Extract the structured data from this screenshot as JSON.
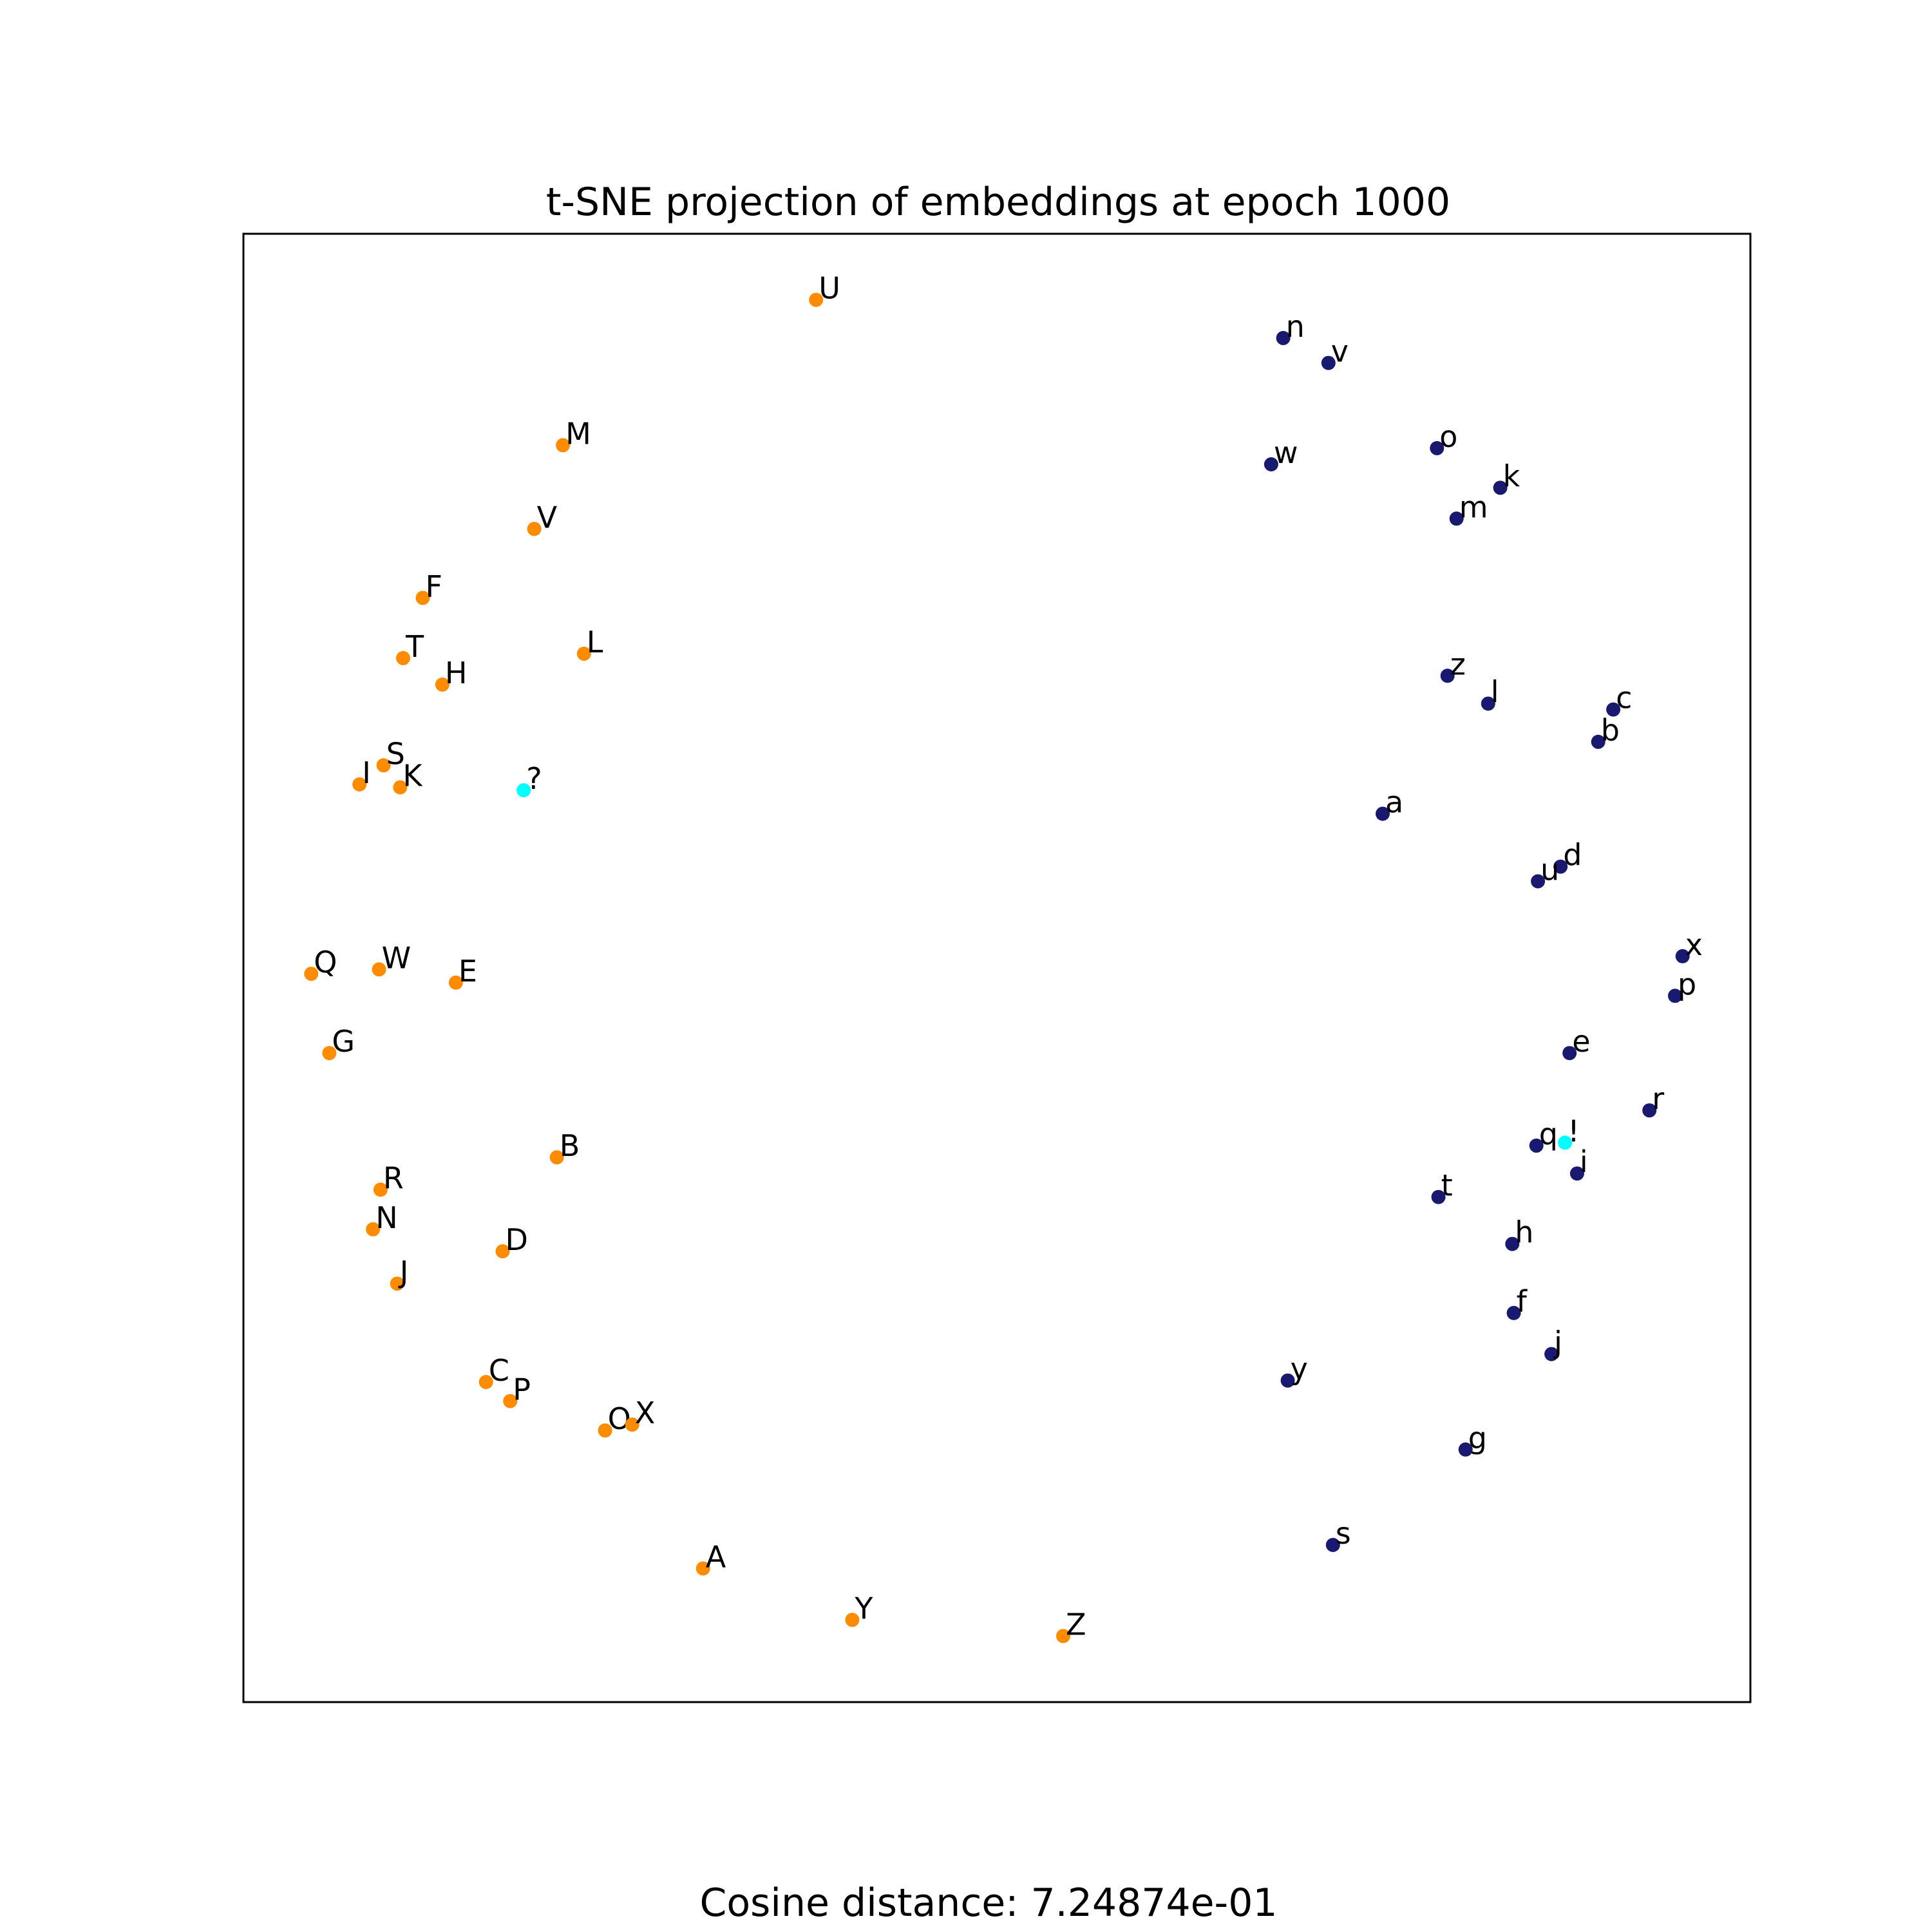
{
  "title": "t-SNE projection of embeddings at epoch 1000",
  "footer": "Cosine distance: 7.24874e-01",
  "colors": {
    "uppercase": "#ff8c00",
    "lowercase": "#191970",
    "punctuation": "#00ffff"
  },
  "chart_data": {
    "type": "scatter",
    "title": "t-SNE projection of embeddings at epoch 1000",
    "xlabel": "",
    "ylabel": "",
    "xlim": [
      0,
      1000
    ],
    "ylim": [
      0,
      1000
    ],
    "grid": false,
    "axis_ticks": false,
    "series": [
      {
        "group": "uppercase",
        "points": [
          {
            "label": "U",
            "x": 380,
            "y": 955
          },
          {
            "label": "M",
            "x": 212,
            "y": 856
          },
          {
            "label": "V",
            "x": 193,
            "y": 799
          },
          {
            "label": "F",
            "x": 119,
            "y": 752
          },
          {
            "label": "L",
            "x": 226,
            "y": 714
          },
          {
            "label": "T",
            "x": 106,
            "y": 711
          },
          {
            "label": "H",
            "x": 132,
            "y": 693
          },
          {
            "label": "S",
            "x": 93,
            "y": 638
          },
          {
            "label": "I",
            "x": 77,
            "y": 625
          },
          {
            "label": "K",
            "x": 104,
            "y": 623
          },
          {
            "label": "Q",
            "x": 45,
            "y": 496
          },
          {
            "label": "W",
            "x": 90,
            "y": 499
          },
          {
            "label": "E",
            "x": 141,
            "y": 490
          },
          {
            "label": "G",
            "x": 57,
            "y": 442
          },
          {
            "label": "B",
            "x": 208,
            "y": 371
          },
          {
            "label": "R",
            "x": 91,
            "y": 349
          },
          {
            "label": "N",
            "x": 86,
            "y": 322
          },
          {
            "label": "D",
            "x": 172,
            "y": 307
          },
          {
            "label": "J",
            "x": 102,
            "y": 285
          },
          {
            "label": "C",
            "x": 161,
            "y": 218
          },
          {
            "label": "P",
            "x": 177,
            "y": 205
          },
          {
            "label": "O",
            "x": 240,
            "y": 185
          },
          {
            "label": "X",
            "x": 258,
            "y": 189
          },
          {
            "label": "A",
            "x": 305,
            "y": 91
          },
          {
            "label": "Y",
            "x": 404,
            "y": 56
          },
          {
            "label": "Z",
            "x": 544,
            "y": 45
          }
        ]
      },
      {
        "group": "lowercase",
        "points": [
          {
            "label": "n",
            "x": 690,
            "y": 929
          },
          {
            "label": "v",
            "x": 720,
            "y": 912
          },
          {
            "label": "w",
            "x": 682,
            "y": 843
          },
          {
            "label": "o",
            "x": 792,
            "y": 854
          },
          {
            "label": "k",
            "x": 834,
            "y": 827
          },
          {
            "label": "m",
            "x": 805,
            "y": 806
          },
          {
            "label": "z",
            "x": 799,
            "y": 699
          },
          {
            "label": "l",
            "x": 826,
            "y": 680
          },
          {
            "label": "c",
            "x": 909,
            "y": 676
          },
          {
            "label": "b",
            "x": 899,
            "y": 654
          },
          {
            "label": "a",
            "x": 756,
            "y": 605
          },
          {
            "label": "d",
            "x": 874,
            "y": 569
          },
          {
            "label": "u",
            "x": 859,
            "y": 559
          },
          {
            "label": "x",
            "x": 955,
            "y": 508
          },
          {
            "label": "p",
            "x": 950,
            "y": 481
          },
          {
            "label": "e",
            "x": 880,
            "y": 442
          },
          {
            "label": "r",
            "x": 933,
            "y": 403
          },
          {
            "label": "q",
            "x": 858,
            "y": 379
          },
          {
            "label": "i",
            "x": 885,
            "y": 360
          },
          {
            "label": "t",
            "x": 793,
            "y": 344
          },
          {
            "label": "h",
            "x": 842,
            "y": 312
          },
          {
            "label": "f",
            "x": 843,
            "y": 265
          },
          {
            "label": "j",
            "x": 868,
            "y": 237
          },
          {
            "label": "y",
            "x": 693,
            "y": 219
          },
          {
            "label": "g",
            "x": 811,
            "y": 172
          },
          {
            "label": "s",
            "x": 723,
            "y": 107
          }
        ]
      },
      {
        "group": "punctuation",
        "points": [
          {
            "label": "?",
            "x": 186,
            "y": 621
          },
          {
            "label": "!",
            "x": 877,
            "y": 381
          }
        ]
      }
    ]
  }
}
